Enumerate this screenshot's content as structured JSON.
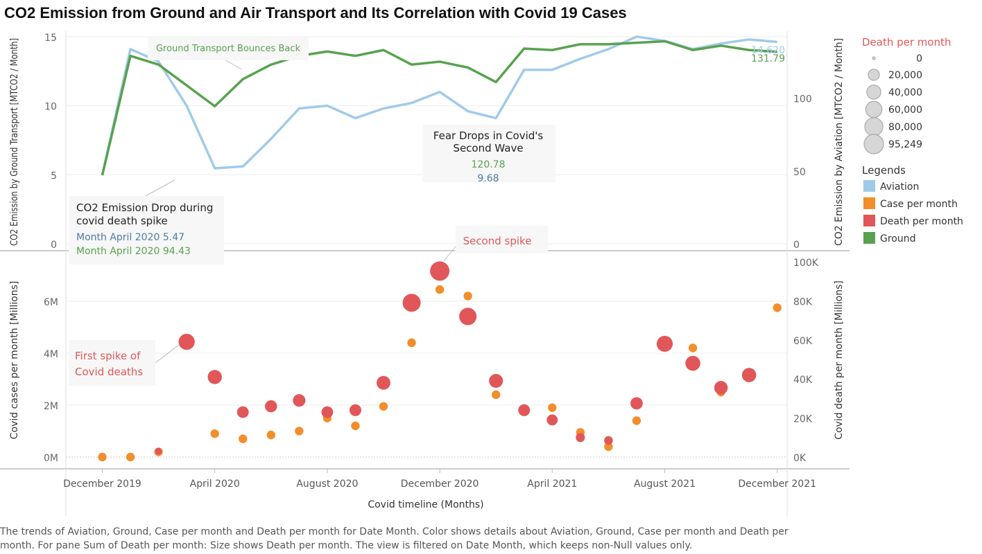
{
  "title": "CO2 Emission from Ground and Air Transport and Its Correlation with Covid 19 Cases",
  "caption": "The trends of Aviation, Ground, Case per month and Death per month for Date Month.  Color shows details about Aviation, Ground, Case per month and Death per month.  For pane Sum of Death per month:  Size shows Death per month. The view is filtered on Date Month, which keeps non-Null values only.",
  "colors": {
    "aviation": "#a0cbe8",
    "ground": "#59a14f",
    "case": "#f28e2b",
    "death": "#e15759",
    "annotation_blue": "#4e79a7",
    "annotation_green": "#59a14f",
    "annotation_red": "#e15759"
  },
  "chart_data": {
    "type": "line",
    "x": [
      "2019-12",
      "2020-01",
      "2020-02",
      "2020-03",
      "2020-04",
      "2020-05",
      "2020-06",
      "2020-07",
      "2020-08",
      "2020-09",
      "2020-10",
      "2020-11",
      "2020-12",
      "2021-01",
      "2021-02",
      "2021-03",
      "2021-04",
      "2021-05",
      "2021-06",
      "2021-07",
      "2021-08",
      "2021-09",
      "2021-10",
      "2021-11",
      "2021-12"
    ],
    "xlabel": "Covid timeline (Months)",
    "x_ticks": [
      {
        "month": "2019-12",
        "label": "December 2019"
      },
      {
        "month": "2020-04",
        "label": "April 2020"
      },
      {
        "month": "2020-08",
        "label": "August 2020"
      },
      {
        "month": "2020-12",
        "label": "December 2020"
      },
      {
        "month": "2021-04",
        "label": "April 2021"
      },
      {
        "month": "2021-08",
        "label": "August 2021"
      },
      {
        "month": "2021-12",
        "label": "December 2021"
      }
    ],
    "top_pane": {
      "left_axis": {
        "label": "CO2 Emission by Ground Transport [MTCO2 / Month]",
        "ylim": [
          0,
          15.5
        ],
        "ticks": [
          {
            "v": 0,
            "label": "0"
          },
          {
            "v": 5,
            "label": "5"
          },
          {
            "v": 10,
            "label": "10"
          },
          {
            "v": 15,
            "label": "15"
          }
        ]
      },
      "right_axis": {
        "label": "CO2 Emission by Aviation [MTCO2 / Month]",
        "ylim": [
          0,
          145
        ],
        "ticks": [
          {
            "v": 0,
            "label": "0"
          },
          {
            "v": 50,
            "label": "50"
          },
          {
            "v": 100,
            "label": "100"
          }
        ]
      },
      "series": [
        {
          "key": "aviation",
          "axis": "left",
          "values": [
            5.0,
            14.1,
            13.2,
            10.0,
            5.47,
            5.6,
            7.6,
            9.8,
            10.0,
            9.1,
            9.8,
            10.2,
            11.0,
            9.6,
            9.1,
            12.6,
            12.6,
            13.4,
            14.1,
            15.0,
            14.7,
            14.1,
            14.5,
            14.8,
            14.62
          ],
          "end_label": "14.620"
        },
        {
          "key": "ground",
          "axis": "right",
          "values": [
            47,
            129,
            123,
            94.43,
            113,
            123,
            129,
            132,
            129,
            133,
            123,
            125,
            121,
            111,
            134,
            133,
            137,
            137,
            138,
            139,
            133,
            136,
            133,
            131.79
          ],
          "x_offset": 0,
          "x_months": [
            "2019-12",
            "2020-01",
            "2020-02",
            "2020-04",
            "2020-05",
            "2020-06",
            "2020-07",
            "2020-08",
            "2020-09",
            "2020-10",
            "2020-11",
            "2020-12",
            "2021-01",
            "2021-02",
            "2021-03",
            "2021-04",
            "2021-05",
            "2021-06",
            "2021-07",
            "2021-08",
            "2021-09",
            "2021-10",
            "2021-11",
            "2021-12"
          ],
          "end_label": "131.79"
        }
      ],
      "annotations": [
        {
          "text": "Ground Transport Bounces Back"
        },
        {
          "lines": [
            "Fear Drops in Covid's",
            "Second Wave"
          ],
          "values": [
            "120.78",
            "9.68"
          ]
        },
        {
          "lines": [
            "CO2 Emission Drop during",
            "covid death spike"
          ],
          "values": [
            "Month April 2020 5.47",
            "Month April 2020 94.43"
          ]
        }
      ]
    },
    "bottom_pane": {
      "left_axis": {
        "label": "Covid cases per month [Millions]",
        "ylim": [
          -0.25,
          7.6
        ],
        "ticks": [
          {
            "v": 0,
            "label": "0M"
          },
          {
            "v": 2,
            "label": "2M"
          },
          {
            "v": 4,
            "label": "4M"
          },
          {
            "v": 6,
            "label": "6M"
          }
        ]
      },
      "right_axis": {
        "label": "Covid death per month [Millions]",
        "ylim": [
          -3300,
          101300
        ],
        "ticks": [
          {
            "v": 0,
            "label": "0K"
          },
          {
            "v": 20000,
            "label": "20K"
          },
          {
            "v": 40000,
            "label": "40K"
          },
          {
            "v": 60000,
            "label": "60K"
          },
          {
            "v": 80000,
            "label": "80K"
          },
          {
            "v": 100000,
            "label": "100K"
          }
        ]
      },
      "case_per_month_millions": [
        0.0,
        0.0,
        0.2,
        0.9,
        0.7,
        0.85,
        1.0,
        1.5,
        1.2,
        1.95,
        4.4,
        6.45,
        6.2,
        2.4,
        1.85,
        1.9,
        0.95,
        0.4,
        1.4,
        4.3,
        4.2,
        2.5,
        5.75
      ],
      "case_months": [
        "2019-12",
        "2020-01",
        "2020-02",
        "2020-04",
        "2020-05",
        "2020-06",
        "2020-07",
        "2020-08",
        "2020-09",
        "2020-10",
        "2020-11",
        "2020-12",
        "2021-01",
        "2021-02",
        "2021-03",
        "2021-04",
        "2021-05",
        "2021-06",
        "2021-07",
        "2021-08",
        "2021-09",
        "2021-10",
        "2021-12"
      ],
      "death_per_month": [
        0,
        0,
        3000,
        59000,
        41000,
        23000,
        26000,
        29000,
        23000,
        24000,
        38000,
        79000,
        95249,
        72000,
        39000,
        24000,
        19000,
        10000,
        8500,
        27500,
        58000,
        48000,
        35500,
        42000
      ],
      "death_months": [
        "2019-12",
        "2020-01",
        "2020-02",
        "2020-03",
        "2020-04",
        "2020-05",
        "2020-06",
        "2020-07",
        "2020-08",
        "2020-09",
        "2020-10",
        "2020-11",
        "2020-12",
        "2021-01",
        "2021-02",
        "2021-03",
        "2021-04",
        "2021-05",
        "2021-06",
        "2021-07",
        "2021-08",
        "2021-09",
        "2021-10",
        "2021-11"
      ],
      "annotations": [
        {
          "text": "Second spike"
        },
        {
          "lines": [
            "First spike of",
            "Covid  deaths"
          ]
        }
      ]
    },
    "size_legend": {
      "title": "Death per month",
      "items": [
        "0",
        "20,000",
        "40,000",
        "60,000",
        "80,000",
        "95,249"
      ],
      "values": [
        0,
        20000,
        40000,
        60000,
        80000,
        95249
      ]
    },
    "color_legend": {
      "title": "Legends",
      "items": [
        {
          "key": "aviation",
          "label": "Aviation"
        },
        {
          "key": "case",
          "label": "Case per month"
        },
        {
          "key": "death",
          "label": "Death per month"
        },
        {
          "key": "ground",
          "label": "Ground"
        }
      ]
    }
  }
}
